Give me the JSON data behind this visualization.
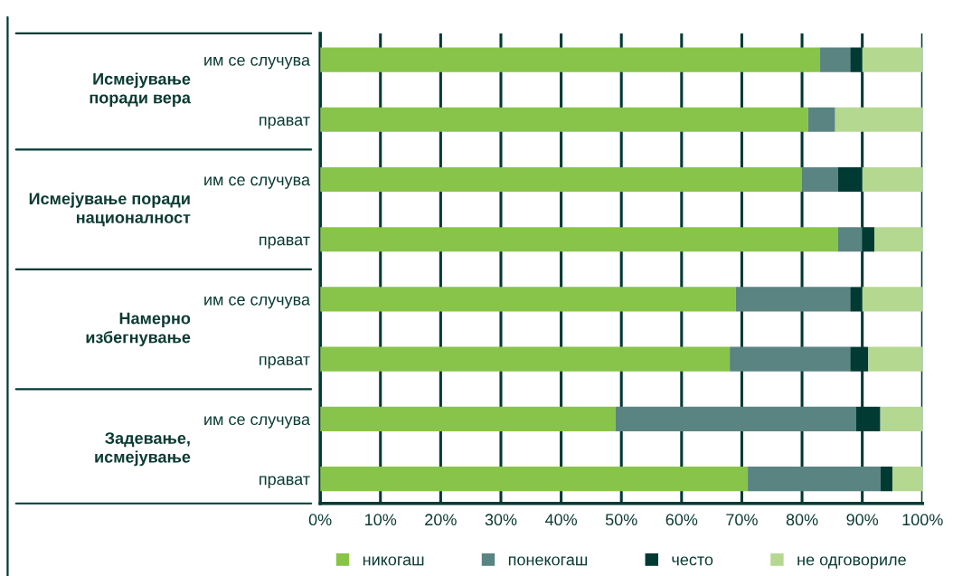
{
  "chart_data": {
    "type": "bar",
    "orientation": "horizontal",
    "stacked": true,
    "categories": [
      "им се случува",
      "прават",
      "им се случува",
      "прават",
      "им се случува",
      "прават",
      "им се случува",
      "прават"
    ],
    "series": [
      {
        "name": "никогаш",
        "color": "#88c449",
        "values": [
          83,
          81,
          80,
          86,
          69,
          68,
          49,
          71
        ]
      },
      {
        "name": "понекогаш",
        "color": "#5a8482",
        "values": [
          5,
          4.5,
          6,
          4,
          19,
          20,
          40,
          22
        ]
      },
      {
        "name": "често",
        "color": "#003a33",
        "values": [
          2,
          0,
          4,
          2,
          2,
          3,
          4,
          2
        ]
      },
      {
        "name": "не одговориле",
        "color": "#b5d891",
        "values": [
          10,
          14.5,
          10,
          8,
          10,
          9,
          7,
          5
        ]
      }
    ],
    "annotations": [
      "Исмејување\nпоради вера",
      "Исмејување поради\nнационалност",
      "Намерно\nизбегнување",
      "Задевање,\nисмејување"
    ],
    "xlim": [
      0,
      100
    ],
    "xticks": [
      {
        "value": 0,
        "label": "0%"
      },
      {
        "value": 10,
        "label": "10%"
      },
      {
        "value": 20,
        "label": "20%"
      },
      {
        "value": 30,
        "label": "30%"
      },
      {
        "value": 40,
        "label": "40%"
      },
      {
        "value": 50,
        "label": "50%"
      },
      {
        "value": 60,
        "label": "60%"
      },
      {
        "value": 70,
        "label": "70%"
      },
      {
        "value": 80,
        "label": "80%"
      },
      {
        "value": 90,
        "label": "90%"
      },
      {
        "value": 100,
        "label": "100%"
      }
    ],
    "grid": "x",
    "legend": "bottom"
  }
}
